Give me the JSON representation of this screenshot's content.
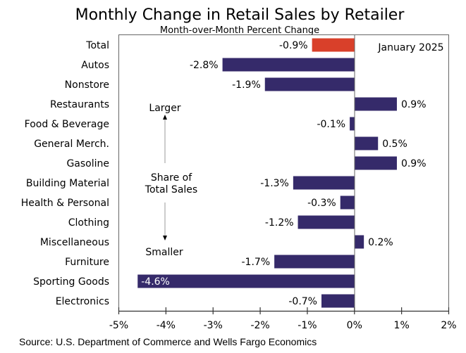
{
  "chart_data": {
    "type": "bar",
    "orientation": "horizontal",
    "title": "Monthly Change in Retail Sales by Retailer",
    "subtitle": "Month-over-Month Percent Change",
    "legend_note": "January 2025",
    "source": "Source: U.S. Department of Commerce and Wells Fargo Economics",
    "categories": [
      "Total",
      "Autos",
      "Nonstore",
      "Restaurants",
      "Food & Beverage",
      "General Merch.",
      "Gasoline",
      "Building Material",
      "Health & Personal",
      "Clothing",
      "Miscellaneous",
      "Furniture",
      "Sporting Goods",
      "Electronics"
    ],
    "values": [
      -0.9,
      -2.8,
      -1.9,
      0.9,
      -0.1,
      0.5,
      0.9,
      -1.3,
      -0.3,
      -1.2,
      0.2,
      -1.7,
      -4.6,
      -0.7
    ],
    "data_labels": [
      "-0.9%",
      "-2.8%",
      "-1.9%",
      "0.9%",
      "-0.1%",
      "0.5%",
      "0.9%",
      "-1.3%",
      "-0.3%",
      "-1.2%",
      "0.2%",
      "-1.7%",
      "-4.6%",
      "-0.7%"
    ],
    "xlim": [
      -5,
      2
    ],
    "xticks": [
      "-5%",
      "-4%",
      "-3%",
      "-2%",
      "-1%",
      "0%",
      "1%",
      "2%"
    ],
    "grid": false,
    "colors": {
      "total": "#d9402a",
      "default": "#352a6a"
    },
    "annotation": {
      "top": "Larger",
      "middle_1": "Share of",
      "middle_2": "Total Sales",
      "bottom": "Smaller"
    }
  }
}
